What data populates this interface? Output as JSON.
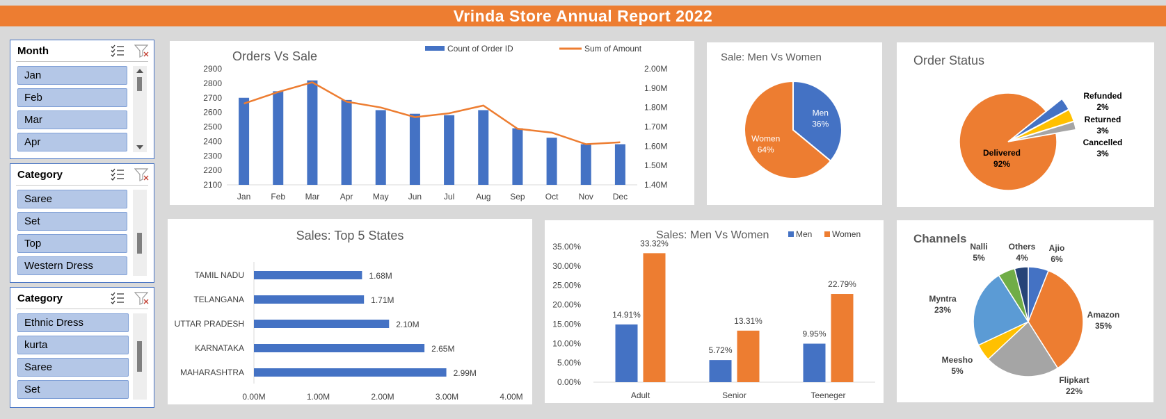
{
  "title": "Vrinda Store Annual Report 2022",
  "slicers": [
    {
      "title": "Month",
      "items": [
        "Jan",
        "Feb",
        "Mar",
        "Apr"
      ]
    },
    {
      "title": "Category",
      "items": [
        "Saree",
        "Set",
        "Top",
        "Western Dress"
      ]
    },
    {
      "title": "Category",
      "items": [
        "Ethnic Dress",
        "kurta",
        "Saree",
        "Set"
      ]
    }
  ],
  "colors": {
    "blue": "#4472c4",
    "orange": "#ed7d31",
    "gray": "#a5a5a5",
    "yellow": "#ffc000",
    "lightblue": "#5b9bd5",
    "green": "#70ad47",
    "navy": "#264478"
  },
  "chart_data": [
    {
      "id": "orders_vs_sale",
      "type": "bar",
      "title": "Orders Vs Sale",
      "categories": [
        "Jan",
        "Feb",
        "Mar",
        "Apr",
        "May",
        "Jun",
        "Jul",
        "Aug",
        "Sep",
        "Oct",
        "Nov",
        "Dec"
      ],
      "series": [
        {
          "name": "Count of Order ID",
          "type": "bar",
          "axis": "left",
          "values": [
            2700,
            2745,
            2820,
            2685,
            2615,
            2590,
            2580,
            2615,
            2490,
            2425,
            2380,
            2380
          ]
        },
        {
          "name": "Sum of Amount",
          "type": "line",
          "axis": "right",
          "values": [
            1.82,
            1.88,
            1.93,
            1.83,
            1.8,
            1.75,
            1.77,
            1.81,
            1.69,
            1.67,
            1.61,
            1.62
          ]
        }
      ],
      "ylim_left": [
        2100,
        2900
      ],
      "yticks_left": [
        "2900",
        "2800",
        "2700",
        "2600",
        "2500",
        "2400",
        "2300",
        "2200",
        "2100"
      ],
      "ylim_right": [
        1.4,
        2.0
      ],
      "yticks_right": [
        "2.00M",
        "1.90M",
        "1.80M",
        "1.70M",
        "1.60M",
        "1.50M",
        "1.40M"
      ]
    },
    {
      "id": "sale_men_women",
      "type": "pie",
      "title": "Sale: Men Vs Women",
      "slices": [
        {
          "label": "Men",
          "value": 36,
          "pct": "36%"
        },
        {
          "label": "Women",
          "value": 64,
          "pct": "64%"
        }
      ]
    },
    {
      "id": "order_status",
      "type": "pie",
      "title": "Order Status",
      "slices": [
        {
          "label": "Delivered",
          "value": 92,
          "pct": "92%"
        },
        {
          "label": "Cancelled",
          "value": 3,
          "pct": "3%"
        },
        {
          "label": "Returned",
          "value": 3,
          "pct": "3%"
        },
        {
          "label": "Refunded",
          "value": 2,
          "pct": "2%"
        }
      ]
    },
    {
      "id": "top5_states",
      "type": "bar",
      "orientation": "horizontal",
      "title": "Sales: Top 5 States",
      "categories": [
        "TAMIL NADU",
        "TELANGANA",
        "UTTAR PRADESH",
        "KARNATAKA",
        "MAHARASHTRA"
      ],
      "values": [
        1.68,
        1.71,
        2.1,
        2.65,
        2.99
      ],
      "labels": [
        "1.68M",
        "1.71M",
        "2.10M",
        "2.65M",
        "2.99M"
      ],
      "xlim": [
        0,
        4
      ],
      "xticks": [
        "0.00M",
        "1.00M",
        "2.00M",
        "3.00M",
        "4.00M"
      ]
    },
    {
      "id": "age_gender",
      "type": "bar",
      "title": "Sales: Men Vs Women",
      "categories": [
        "Adult",
        "Senior",
        "Teeneger"
      ],
      "series": [
        {
          "name": "Men",
          "values": [
            14.91,
            5.72,
            9.95
          ],
          "labels": [
            "14.91%",
            "5.72%",
            "9.95%"
          ]
        },
        {
          "name": "Women",
          "values": [
            33.32,
            13.31,
            22.79
          ],
          "labels": [
            "33.32%",
            "13.31%",
            "22.79%"
          ]
        }
      ],
      "ylim": [
        0,
        35
      ],
      "yticks": [
        "35.00%",
        "30.00%",
        "25.00%",
        "20.00%",
        "15.00%",
        "10.00%",
        "5.00%",
        "0.00%"
      ]
    },
    {
      "id": "channels",
      "type": "pie",
      "title": "Channels",
      "slices": [
        {
          "label": "Ajio",
          "value": 6,
          "pct": "6%"
        },
        {
          "label": "Amazon",
          "value": 35,
          "pct": "35%"
        },
        {
          "label": "Flipkart",
          "value": 22,
          "pct": "22%"
        },
        {
          "label": "Meesho",
          "value": 5,
          "pct": "5%"
        },
        {
          "label": "Myntra",
          "value": 23,
          "pct": "23%"
        },
        {
          "label": "Nalli",
          "value": 5,
          "pct": "5%"
        },
        {
          "label": "Others",
          "value": 4,
          "pct": "4%"
        }
      ]
    }
  ]
}
